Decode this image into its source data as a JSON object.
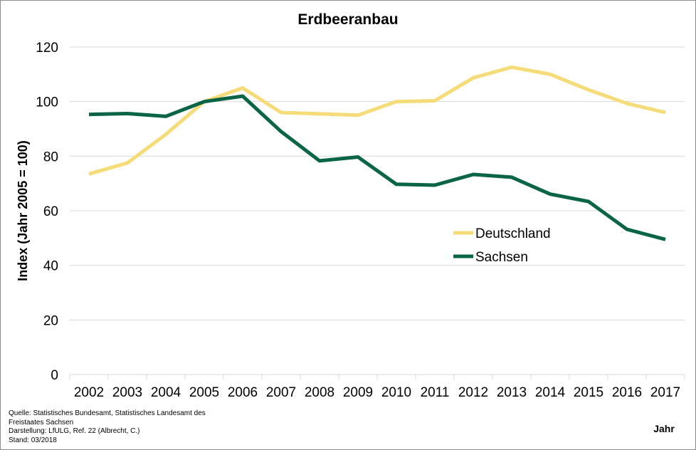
{
  "chart_data": {
    "type": "line",
    "title": "Erdbeeranbau",
    "xlabel": "Jahr",
    "ylabel": "Index (Jahr 2005 = 100)",
    "ylim": [
      0,
      120
    ],
    "yticks": [
      0,
      20,
      40,
      60,
      80,
      100,
      120
    ],
    "grid": true,
    "legend_position": "right",
    "x": [
      "2002",
      "2003",
      "2004",
      "2005",
      "2006",
      "2007",
      "2008",
      "2009",
      "2010",
      "2011",
      "2012",
      "2013",
      "2014",
      "2015",
      "2016",
      "2017"
    ],
    "series": [
      {
        "name": "Deutschland",
        "color": "#f5dc78",
        "values": [
          73.5,
          77.5,
          88,
          100,
          105,
          96,
          95.5,
          95,
          100,
          100.3,
          108.7,
          112.6,
          110,
          104.3,
          99.3,
          96
        ]
      },
      {
        "name": "Sachsen",
        "color": "#0a6547",
        "values": [
          95.3,
          95.6,
          94.6,
          100,
          102,
          89,
          78.3,
          79.7,
          69.7,
          69.4,
          73.3,
          72.3,
          66.1,
          63.4,
          53.2,
          49.5
        ]
      }
    ]
  },
  "source": {
    "line1": "Quelle:  Statistisches Bundesamt, Statistisches Landesamt des",
    "line2": "Freistaates Sachsen",
    "line3": "Darstellung: LfULG, Ref. 22 (Albrecht, C.)",
    "line4": "Stand: 03/2018"
  }
}
